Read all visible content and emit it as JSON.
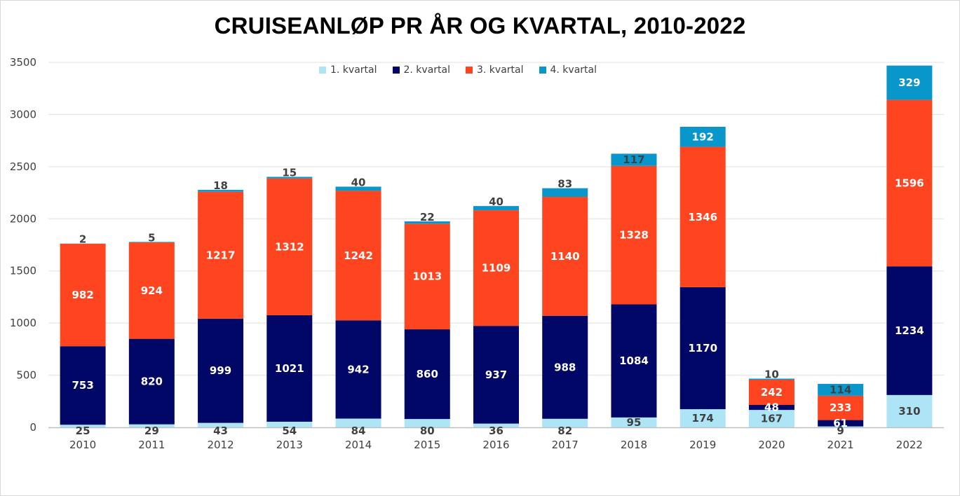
{
  "chart_data": {
    "type": "bar",
    "stacked": true,
    "title": "CRUISEANLØP PR ÅR OG KVARTAL, 2010-2022",
    "xlabel": "",
    "ylabel": "",
    "ylim": [
      0,
      3500
    ],
    "yticks": [
      0,
      500,
      1000,
      1500,
      2000,
      2500,
      3000,
      3500
    ],
    "grid": true,
    "legend_position": "top-center",
    "categories": [
      "2010",
      "2011",
      "2012",
      "2013",
      "2014",
      "2015",
      "2016",
      "2017",
      "2018",
      "2019",
      "2020",
      "2021",
      "2022"
    ],
    "series": [
      {
        "name": "1. kvartal",
        "color": "#ADE5F7",
        "label_color": "#404040",
        "values": [
          25,
          29,
          43,
          54,
          84,
          80,
          36,
          82,
          95,
          174,
          167,
          9,
          310
        ]
      },
      {
        "name": "2. kvartal",
        "color": "#000766",
        "label_color": "#FFFFFF",
        "values": [
          753,
          820,
          999,
          1021,
          942,
          860,
          937,
          988,
          1084,
          1170,
          48,
          61,
          1234
        ]
      },
      {
        "name": "3. kvartal",
        "color": "#FF4520",
        "label_color": "#FFFFFF",
        "values": [
          982,
          924,
          1217,
          1312,
          1242,
          1013,
          1109,
          1140,
          1328,
          1346,
          242,
          233,
          1596
        ]
      },
      {
        "name": "4. kvartal",
        "color": "#0896CB",
        "label_color": "#404040",
        "label_color_large": "#FFFFFF",
        "values": [
          2,
          5,
          18,
          15,
          40,
          22,
          40,
          83,
          117,
          192,
          10,
          114,
          329
        ]
      }
    ]
  }
}
